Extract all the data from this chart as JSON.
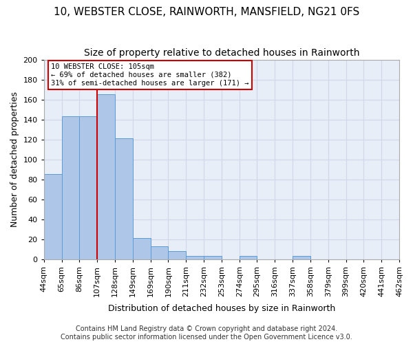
{
  "title": "10, WEBSTER CLOSE, RAINWORTH, MANSFIELD, NG21 0FS",
  "subtitle": "Size of property relative to detached houses in Rainworth",
  "xlabel": "Distribution of detached houses by size in Rainworth",
  "ylabel": "Number of detached properties",
  "bin_labels": [
    "44sqm",
    "65sqm",
    "86sqm",
    "107sqm",
    "128sqm",
    "149sqm",
    "169sqm",
    "190sqm",
    "211sqm",
    "232sqm",
    "253sqm",
    "274sqm",
    "295sqm",
    "316sqm",
    "337sqm",
    "358sqm",
    "379sqm",
    "399sqm",
    "420sqm",
    "441sqm",
    "462sqm"
  ],
  "bar_values": [
    85,
    143,
    143,
    165,
    121,
    21,
    13,
    8,
    3,
    3,
    0,
    3,
    0,
    0,
    3,
    0,
    0,
    0,
    0,
    0
  ],
  "bar_color": "#aec6e8",
  "bar_edge_color": "#5b9bd5",
  "vline_x": 3.0,
  "annotation_text": "10 WEBSTER CLOSE: 105sqm\n← 69% of detached houses are smaller (382)\n31% of semi-detached houses are larger (171) →",
  "annotation_box_color": "#ffffff",
  "annotation_box_edge": "#cc0000",
  "vline_color": "#cc0000",
  "ylim": [
    0,
    200
  ],
  "yticks": [
    0,
    20,
    40,
    60,
    80,
    100,
    120,
    140,
    160,
    180,
    200
  ],
  "footer_line1": "Contains HM Land Registry data © Crown copyright and database right 2024.",
  "footer_line2": "Contains public sector information licensed under the Open Government Licence v3.0.",
  "bg_color": "#ffffff",
  "axes_bg_color": "#e8eef8",
  "grid_color": "#d0d8e8",
  "title_fontsize": 11,
  "subtitle_fontsize": 10,
  "label_fontsize": 9,
  "tick_fontsize": 8,
  "footer_fontsize": 7
}
